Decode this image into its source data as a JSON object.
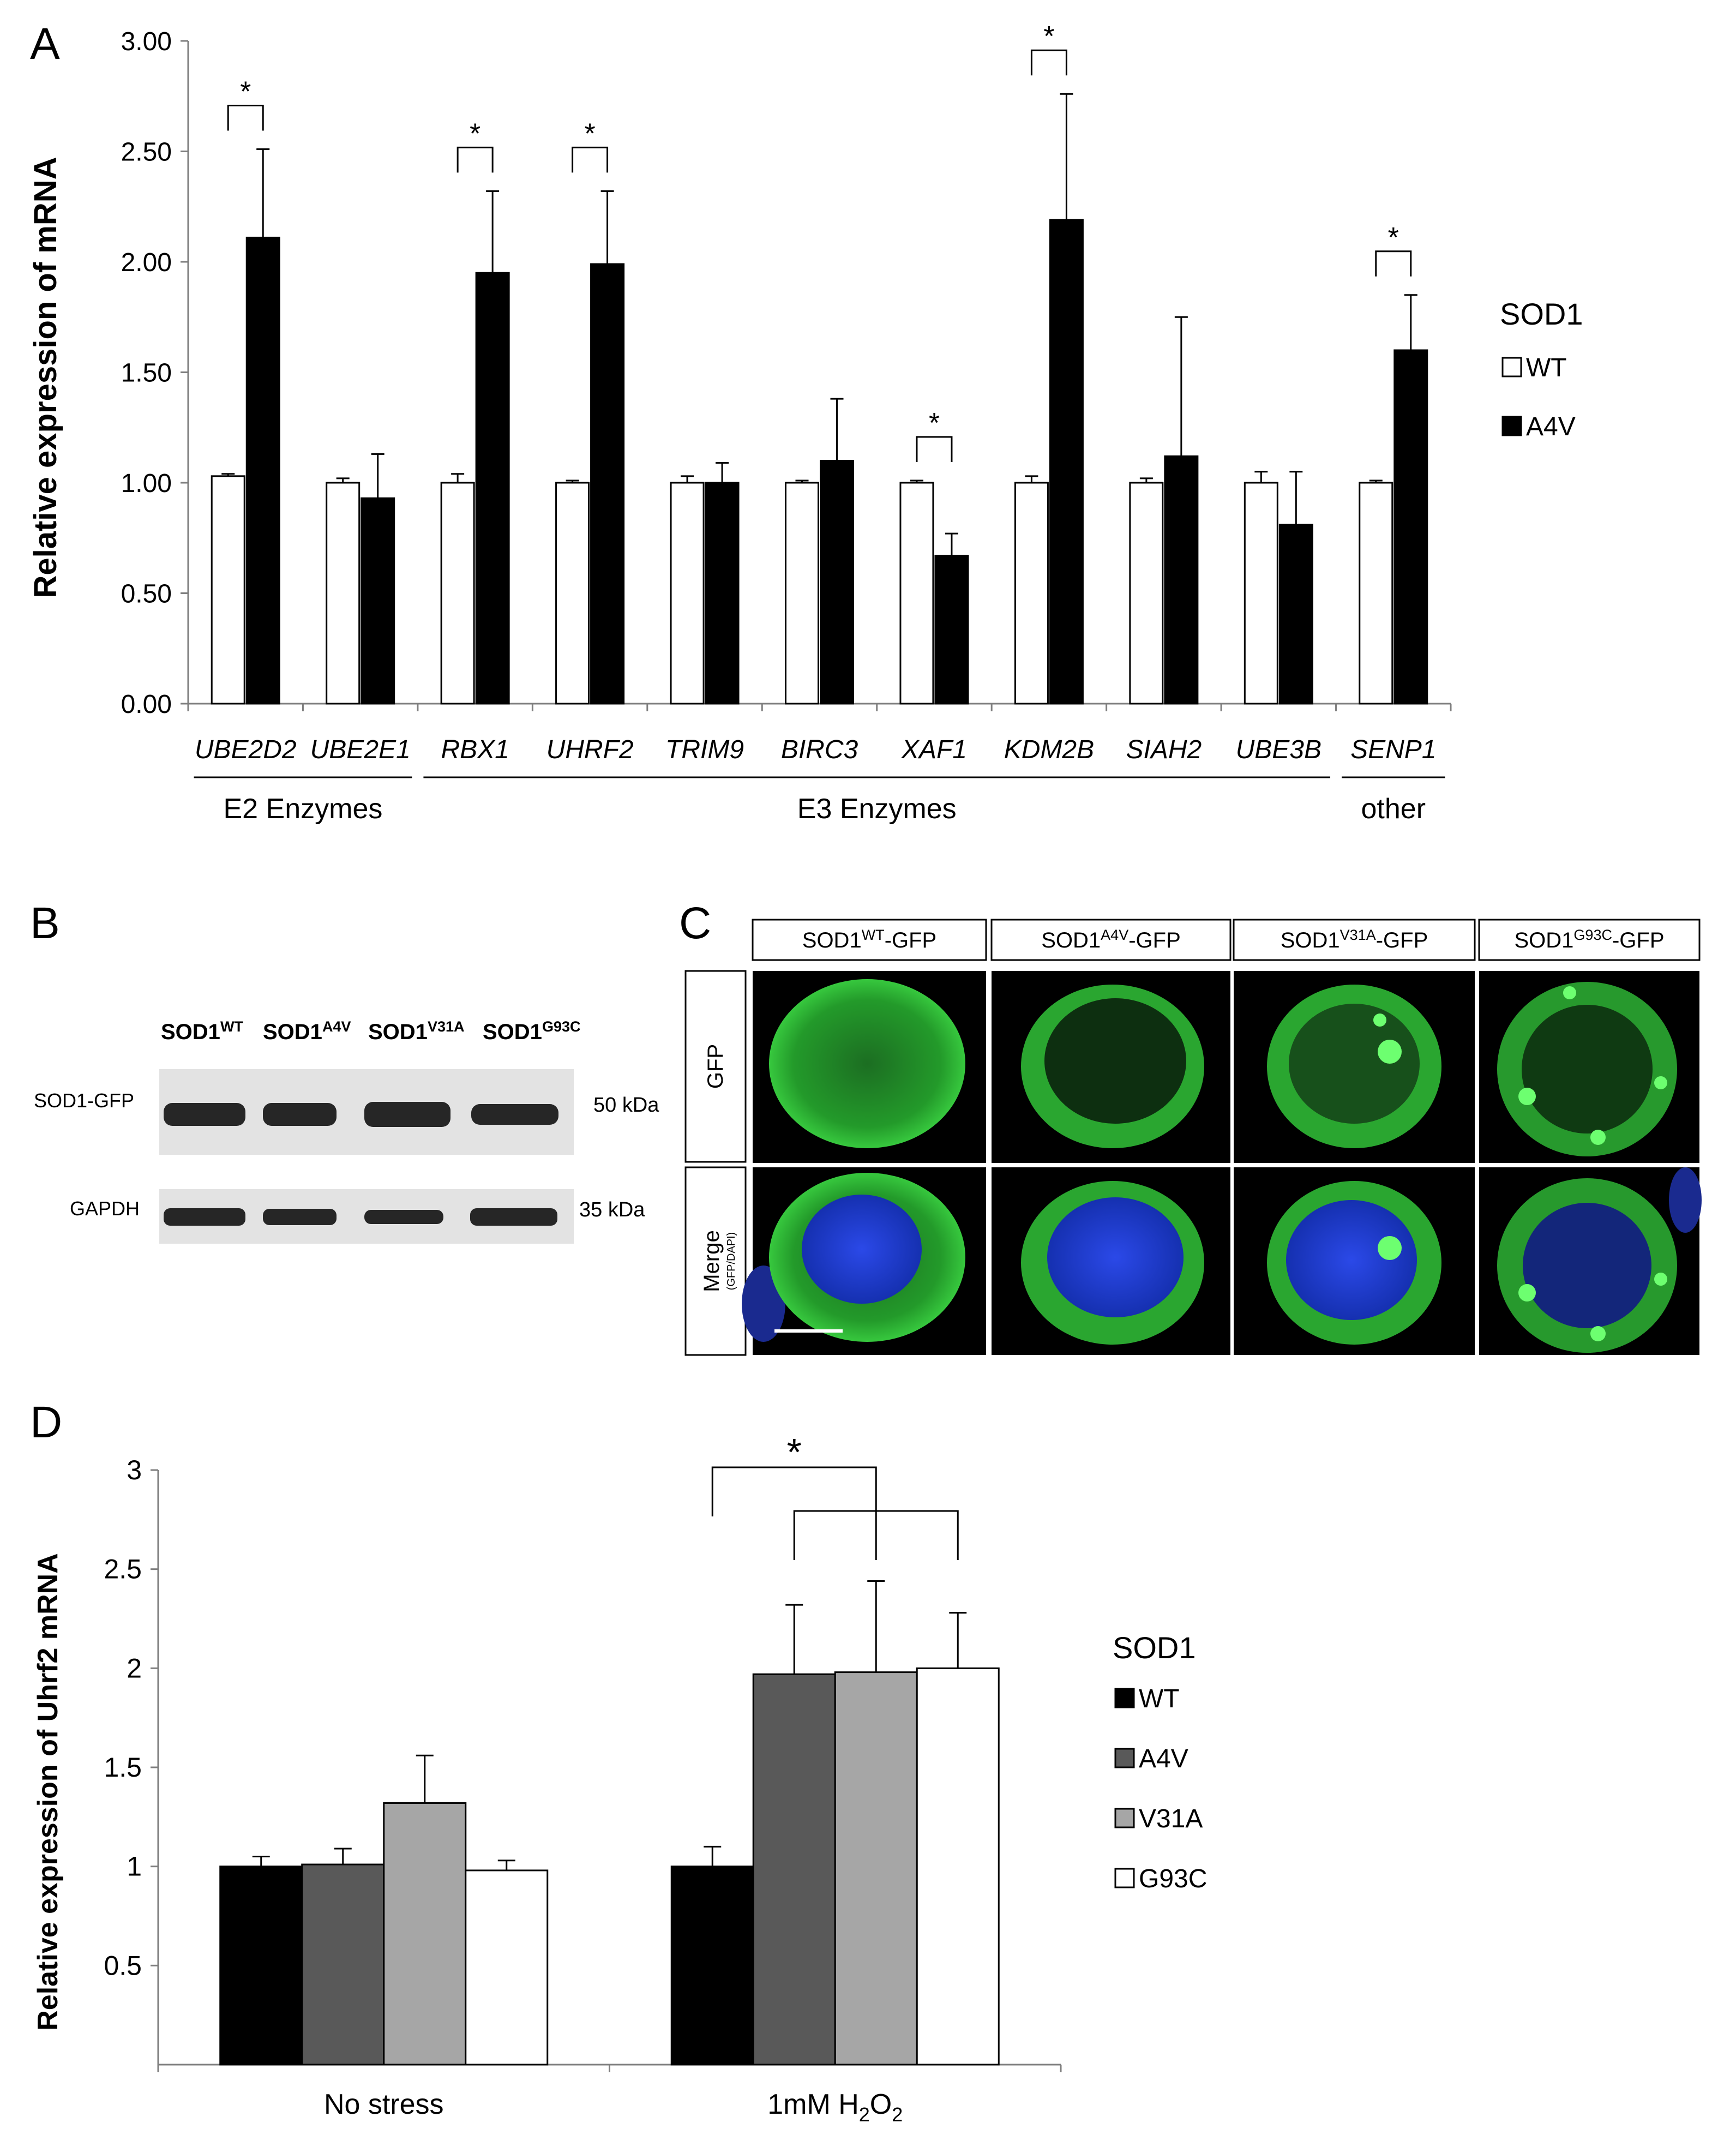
{
  "panels": {
    "A": {
      "letter": "A"
    },
    "B": {
      "letter": "B",
      "col_base": "SOD1",
      "columns": [
        "WT",
        "A4V",
        "V31A",
        "G93C"
      ],
      "row_labels": [
        "SOD1-GFP",
        "GAPDH"
      ],
      "kda": [
        "50 kDa",
        "35 kDa"
      ]
    },
    "C": {
      "letter": "C",
      "col_base": "SOD1",
      "col_suffix": "-GFP",
      "columns": [
        "WT",
        "A4V",
        "V31A",
        "G93C"
      ],
      "row_gfp": "GFP",
      "row_merge": "Merge",
      "row_merge_sub": "(GFP/DAPI)"
    },
    "D": {
      "letter": "D"
    }
  },
  "chart_data": [
    {
      "type": "bar",
      "ylabel": "Relative expression of mRNA",
      "ylim": [
        0,
        3
      ],
      "yticks": [
        "0.00",
        "0.50",
        "1.00",
        "1.50",
        "2.00",
        "2.50",
        "3.00"
      ],
      "categories": [
        "UBE2D2",
        "UBE2E1",
        "RBX1",
        "UHRF2",
        "TRIM9",
        "BIRC3",
        "XAF1",
        "KDM2B",
        "SIAH2",
        "UBE3B",
        "SENP1"
      ],
      "series": [
        {
          "name": "WT",
          "color": "#ffffff",
          "values": [
            1.03,
            1.0,
            1.0,
            1.0,
            1.0,
            1.0,
            1.0,
            1.0,
            1.0,
            1.0,
            1.0
          ],
          "errors": [
            0.01,
            0.02,
            0.04,
            0.01,
            0.03,
            0.01,
            0.01,
            0.03,
            0.02,
            0.05,
            0.01
          ]
        },
        {
          "name": "A4V",
          "color": "#000000",
          "values": [
            2.11,
            0.93,
            1.95,
            1.99,
            1.0,
            1.1,
            0.67,
            2.19,
            1.12,
            0.81,
            1.6
          ],
          "errors": [
            0.4,
            0.2,
            0.37,
            0.33,
            0.09,
            0.28,
            0.1,
            0.57,
            0.63,
            0.24,
            0.25
          ]
        }
      ],
      "significance_label": "*",
      "significant": [
        "UBE2D2",
        "RBX1",
        "UHRF2",
        "XAF1",
        "KDM2B",
        "SENP1"
      ],
      "groups": [
        {
          "label": "E2 Enzymes",
          "categories": [
            "UBE2D2",
            "UBE2E1"
          ]
        },
        {
          "label": "E3 Enzymes",
          "categories": [
            "RBX1",
            "UHRF2",
            "TRIM9",
            "BIRC3",
            "XAF1",
            "KDM2B",
            "SIAH2",
            "UBE3B"
          ]
        },
        {
          "label": "other",
          "categories": [
            "SENP1"
          ]
        }
      ],
      "legend_title": "SOD1",
      "legend_position": "right"
    },
    {
      "type": "bar",
      "ylabel": "Relative expression of Uhrf2 mRNA",
      "ylim": [
        0,
        3
      ],
      "yticks": [
        "0.5",
        "1",
        "1.5",
        "2",
        "2.5",
        "3"
      ],
      "categories": [
        "No stress",
        "1mM H2O2"
      ],
      "series": [
        {
          "name": "WT",
          "color": "#000000",
          "values": [
            1.0,
            1.0
          ],
          "errors": [
            0.05,
            0.1
          ]
        },
        {
          "name": "A4V",
          "color": "#595959",
          "values": [
            1.01,
            1.97
          ],
          "errors": [
            0.08,
            0.35
          ]
        },
        {
          "name": "V31A",
          "color": "#a6a6a6",
          "values": [
            1.32,
            1.98
          ],
          "errors": [
            0.24,
            0.46
          ]
        },
        {
          "name": "G93C",
          "color": "#ffffff",
          "values": [
            0.98,
            2.0
          ],
          "errors": [
            0.05,
            0.28
          ]
        }
      ],
      "significance_label": "*",
      "legend_title": "SOD1",
      "legend_position": "right"
    }
  ]
}
